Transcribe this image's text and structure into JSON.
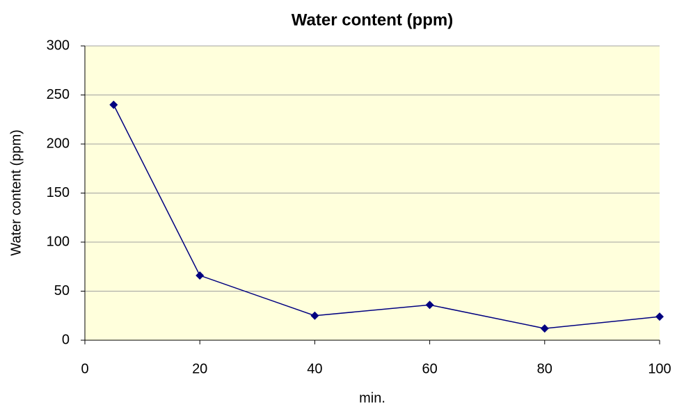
{
  "chart_data": {
    "type": "line",
    "title": "Water content (ppm)",
    "x_label": "min.",
    "y_label": "Water content (ppm)",
    "x": [
      5,
      20,
      40,
      60,
      80,
      100
    ],
    "series": [
      {
        "name": "Water content (ppm)",
        "color": "#000080",
        "values": [
          240,
          66,
          25,
          36,
          12,
          24
        ]
      }
    ],
    "xlim": [
      0,
      100
    ],
    "xticks": [
      0,
      20,
      40,
      60,
      80,
      100
    ],
    "ylim": [
      0,
      300
    ],
    "yticks": [
      0,
      50,
      100,
      150,
      200,
      250,
      300
    ],
    "grid": true,
    "plot_background": "#ffffdc"
  }
}
